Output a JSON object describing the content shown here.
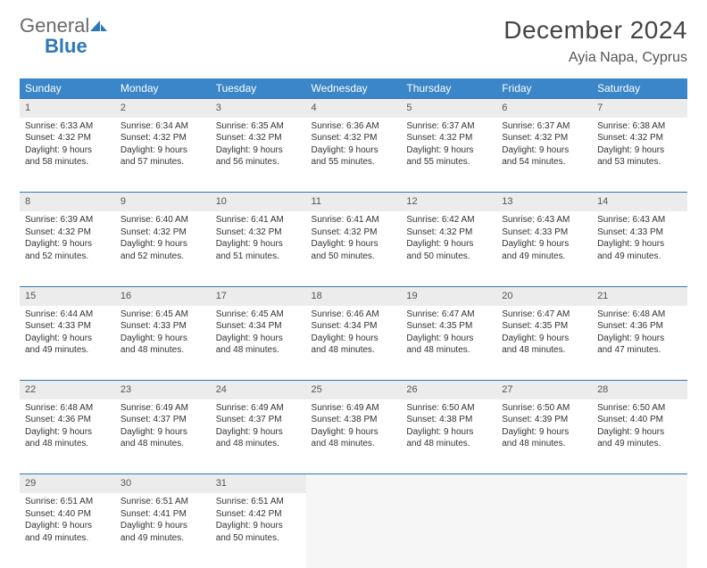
{
  "logo": {
    "general": "General",
    "blue": "Blue"
  },
  "title": "December 2024",
  "location": "Ayia Napa, Cyprus",
  "colors": {
    "header_bg": "#3a86c8",
    "header_text": "#ffffff",
    "daynum_bg": "#ececec",
    "border": "#2e77b8",
    "logo_gray": "#6a6a6a",
    "logo_blue": "#2e77b8"
  },
  "weekdays": [
    "Sunday",
    "Monday",
    "Tuesday",
    "Wednesday",
    "Thursday",
    "Friday",
    "Saturday"
  ],
  "weeks": [
    [
      {
        "n": "1",
        "sr": "Sunrise: 6:33 AM",
        "ss": "Sunset: 4:32 PM",
        "d1": "Daylight: 9 hours",
        "d2": "and 58 minutes."
      },
      {
        "n": "2",
        "sr": "Sunrise: 6:34 AM",
        "ss": "Sunset: 4:32 PM",
        "d1": "Daylight: 9 hours",
        "d2": "and 57 minutes."
      },
      {
        "n": "3",
        "sr": "Sunrise: 6:35 AM",
        "ss": "Sunset: 4:32 PM",
        "d1": "Daylight: 9 hours",
        "d2": "and 56 minutes."
      },
      {
        "n": "4",
        "sr": "Sunrise: 6:36 AM",
        "ss": "Sunset: 4:32 PM",
        "d1": "Daylight: 9 hours",
        "d2": "and 55 minutes."
      },
      {
        "n": "5",
        "sr": "Sunrise: 6:37 AM",
        "ss": "Sunset: 4:32 PM",
        "d1": "Daylight: 9 hours",
        "d2": "and 55 minutes."
      },
      {
        "n": "6",
        "sr": "Sunrise: 6:37 AM",
        "ss": "Sunset: 4:32 PM",
        "d1": "Daylight: 9 hours",
        "d2": "and 54 minutes."
      },
      {
        "n": "7",
        "sr": "Sunrise: 6:38 AM",
        "ss": "Sunset: 4:32 PM",
        "d1": "Daylight: 9 hours",
        "d2": "and 53 minutes."
      }
    ],
    [
      {
        "n": "8",
        "sr": "Sunrise: 6:39 AM",
        "ss": "Sunset: 4:32 PM",
        "d1": "Daylight: 9 hours",
        "d2": "and 52 minutes."
      },
      {
        "n": "9",
        "sr": "Sunrise: 6:40 AM",
        "ss": "Sunset: 4:32 PM",
        "d1": "Daylight: 9 hours",
        "d2": "and 52 minutes."
      },
      {
        "n": "10",
        "sr": "Sunrise: 6:41 AM",
        "ss": "Sunset: 4:32 PM",
        "d1": "Daylight: 9 hours",
        "d2": "and 51 minutes."
      },
      {
        "n": "11",
        "sr": "Sunrise: 6:41 AM",
        "ss": "Sunset: 4:32 PM",
        "d1": "Daylight: 9 hours",
        "d2": "and 50 minutes."
      },
      {
        "n": "12",
        "sr": "Sunrise: 6:42 AM",
        "ss": "Sunset: 4:32 PM",
        "d1": "Daylight: 9 hours",
        "d2": "and 50 minutes."
      },
      {
        "n": "13",
        "sr": "Sunrise: 6:43 AM",
        "ss": "Sunset: 4:33 PM",
        "d1": "Daylight: 9 hours",
        "d2": "and 49 minutes."
      },
      {
        "n": "14",
        "sr": "Sunrise: 6:43 AM",
        "ss": "Sunset: 4:33 PM",
        "d1": "Daylight: 9 hours",
        "d2": "and 49 minutes."
      }
    ],
    [
      {
        "n": "15",
        "sr": "Sunrise: 6:44 AM",
        "ss": "Sunset: 4:33 PM",
        "d1": "Daylight: 9 hours",
        "d2": "and 49 minutes."
      },
      {
        "n": "16",
        "sr": "Sunrise: 6:45 AM",
        "ss": "Sunset: 4:33 PM",
        "d1": "Daylight: 9 hours",
        "d2": "and 48 minutes."
      },
      {
        "n": "17",
        "sr": "Sunrise: 6:45 AM",
        "ss": "Sunset: 4:34 PM",
        "d1": "Daylight: 9 hours",
        "d2": "and 48 minutes."
      },
      {
        "n": "18",
        "sr": "Sunrise: 6:46 AM",
        "ss": "Sunset: 4:34 PM",
        "d1": "Daylight: 9 hours",
        "d2": "and 48 minutes."
      },
      {
        "n": "19",
        "sr": "Sunrise: 6:47 AM",
        "ss": "Sunset: 4:35 PM",
        "d1": "Daylight: 9 hours",
        "d2": "and 48 minutes."
      },
      {
        "n": "20",
        "sr": "Sunrise: 6:47 AM",
        "ss": "Sunset: 4:35 PM",
        "d1": "Daylight: 9 hours",
        "d2": "and 48 minutes."
      },
      {
        "n": "21",
        "sr": "Sunrise: 6:48 AM",
        "ss": "Sunset: 4:36 PM",
        "d1": "Daylight: 9 hours",
        "d2": "and 47 minutes."
      }
    ],
    [
      {
        "n": "22",
        "sr": "Sunrise: 6:48 AM",
        "ss": "Sunset: 4:36 PM",
        "d1": "Daylight: 9 hours",
        "d2": "and 48 minutes."
      },
      {
        "n": "23",
        "sr": "Sunrise: 6:49 AM",
        "ss": "Sunset: 4:37 PM",
        "d1": "Daylight: 9 hours",
        "d2": "and 48 minutes."
      },
      {
        "n": "24",
        "sr": "Sunrise: 6:49 AM",
        "ss": "Sunset: 4:37 PM",
        "d1": "Daylight: 9 hours",
        "d2": "and 48 minutes."
      },
      {
        "n": "25",
        "sr": "Sunrise: 6:49 AM",
        "ss": "Sunset: 4:38 PM",
        "d1": "Daylight: 9 hours",
        "d2": "and 48 minutes."
      },
      {
        "n": "26",
        "sr": "Sunrise: 6:50 AM",
        "ss": "Sunset: 4:38 PM",
        "d1": "Daylight: 9 hours",
        "d2": "and 48 minutes."
      },
      {
        "n": "27",
        "sr": "Sunrise: 6:50 AM",
        "ss": "Sunset: 4:39 PM",
        "d1": "Daylight: 9 hours",
        "d2": "and 48 minutes."
      },
      {
        "n": "28",
        "sr": "Sunrise: 6:50 AM",
        "ss": "Sunset: 4:40 PM",
        "d1": "Daylight: 9 hours",
        "d2": "and 49 minutes."
      }
    ],
    [
      {
        "n": "29",
        "sr": "Sunrise: 6:51 AM",
        "ss": "Sunset: 4:40 PM",
        "d1": "Daylight: 9 hours",
        "d2": "and 49 minutes."
      },
      {
        "n": "30",
        "sr": "Sunrise: 6:51 AM",
        "ss": "Sunset: 4:41 PM",
        "d1": "Daylight: 9 hours",
        "d2": "and 49 minutes."
      },
      {
        "n": "31",
        "sr": "Sunrise: 6:51 AM",
        "ss": "Sunset: 4:42 PM",
        "d1": "Daylight: 9 hours",
        "d2": "and 50 minutes."
      },
      null,
      null,
      null,
      null
    ]
  ]
}
